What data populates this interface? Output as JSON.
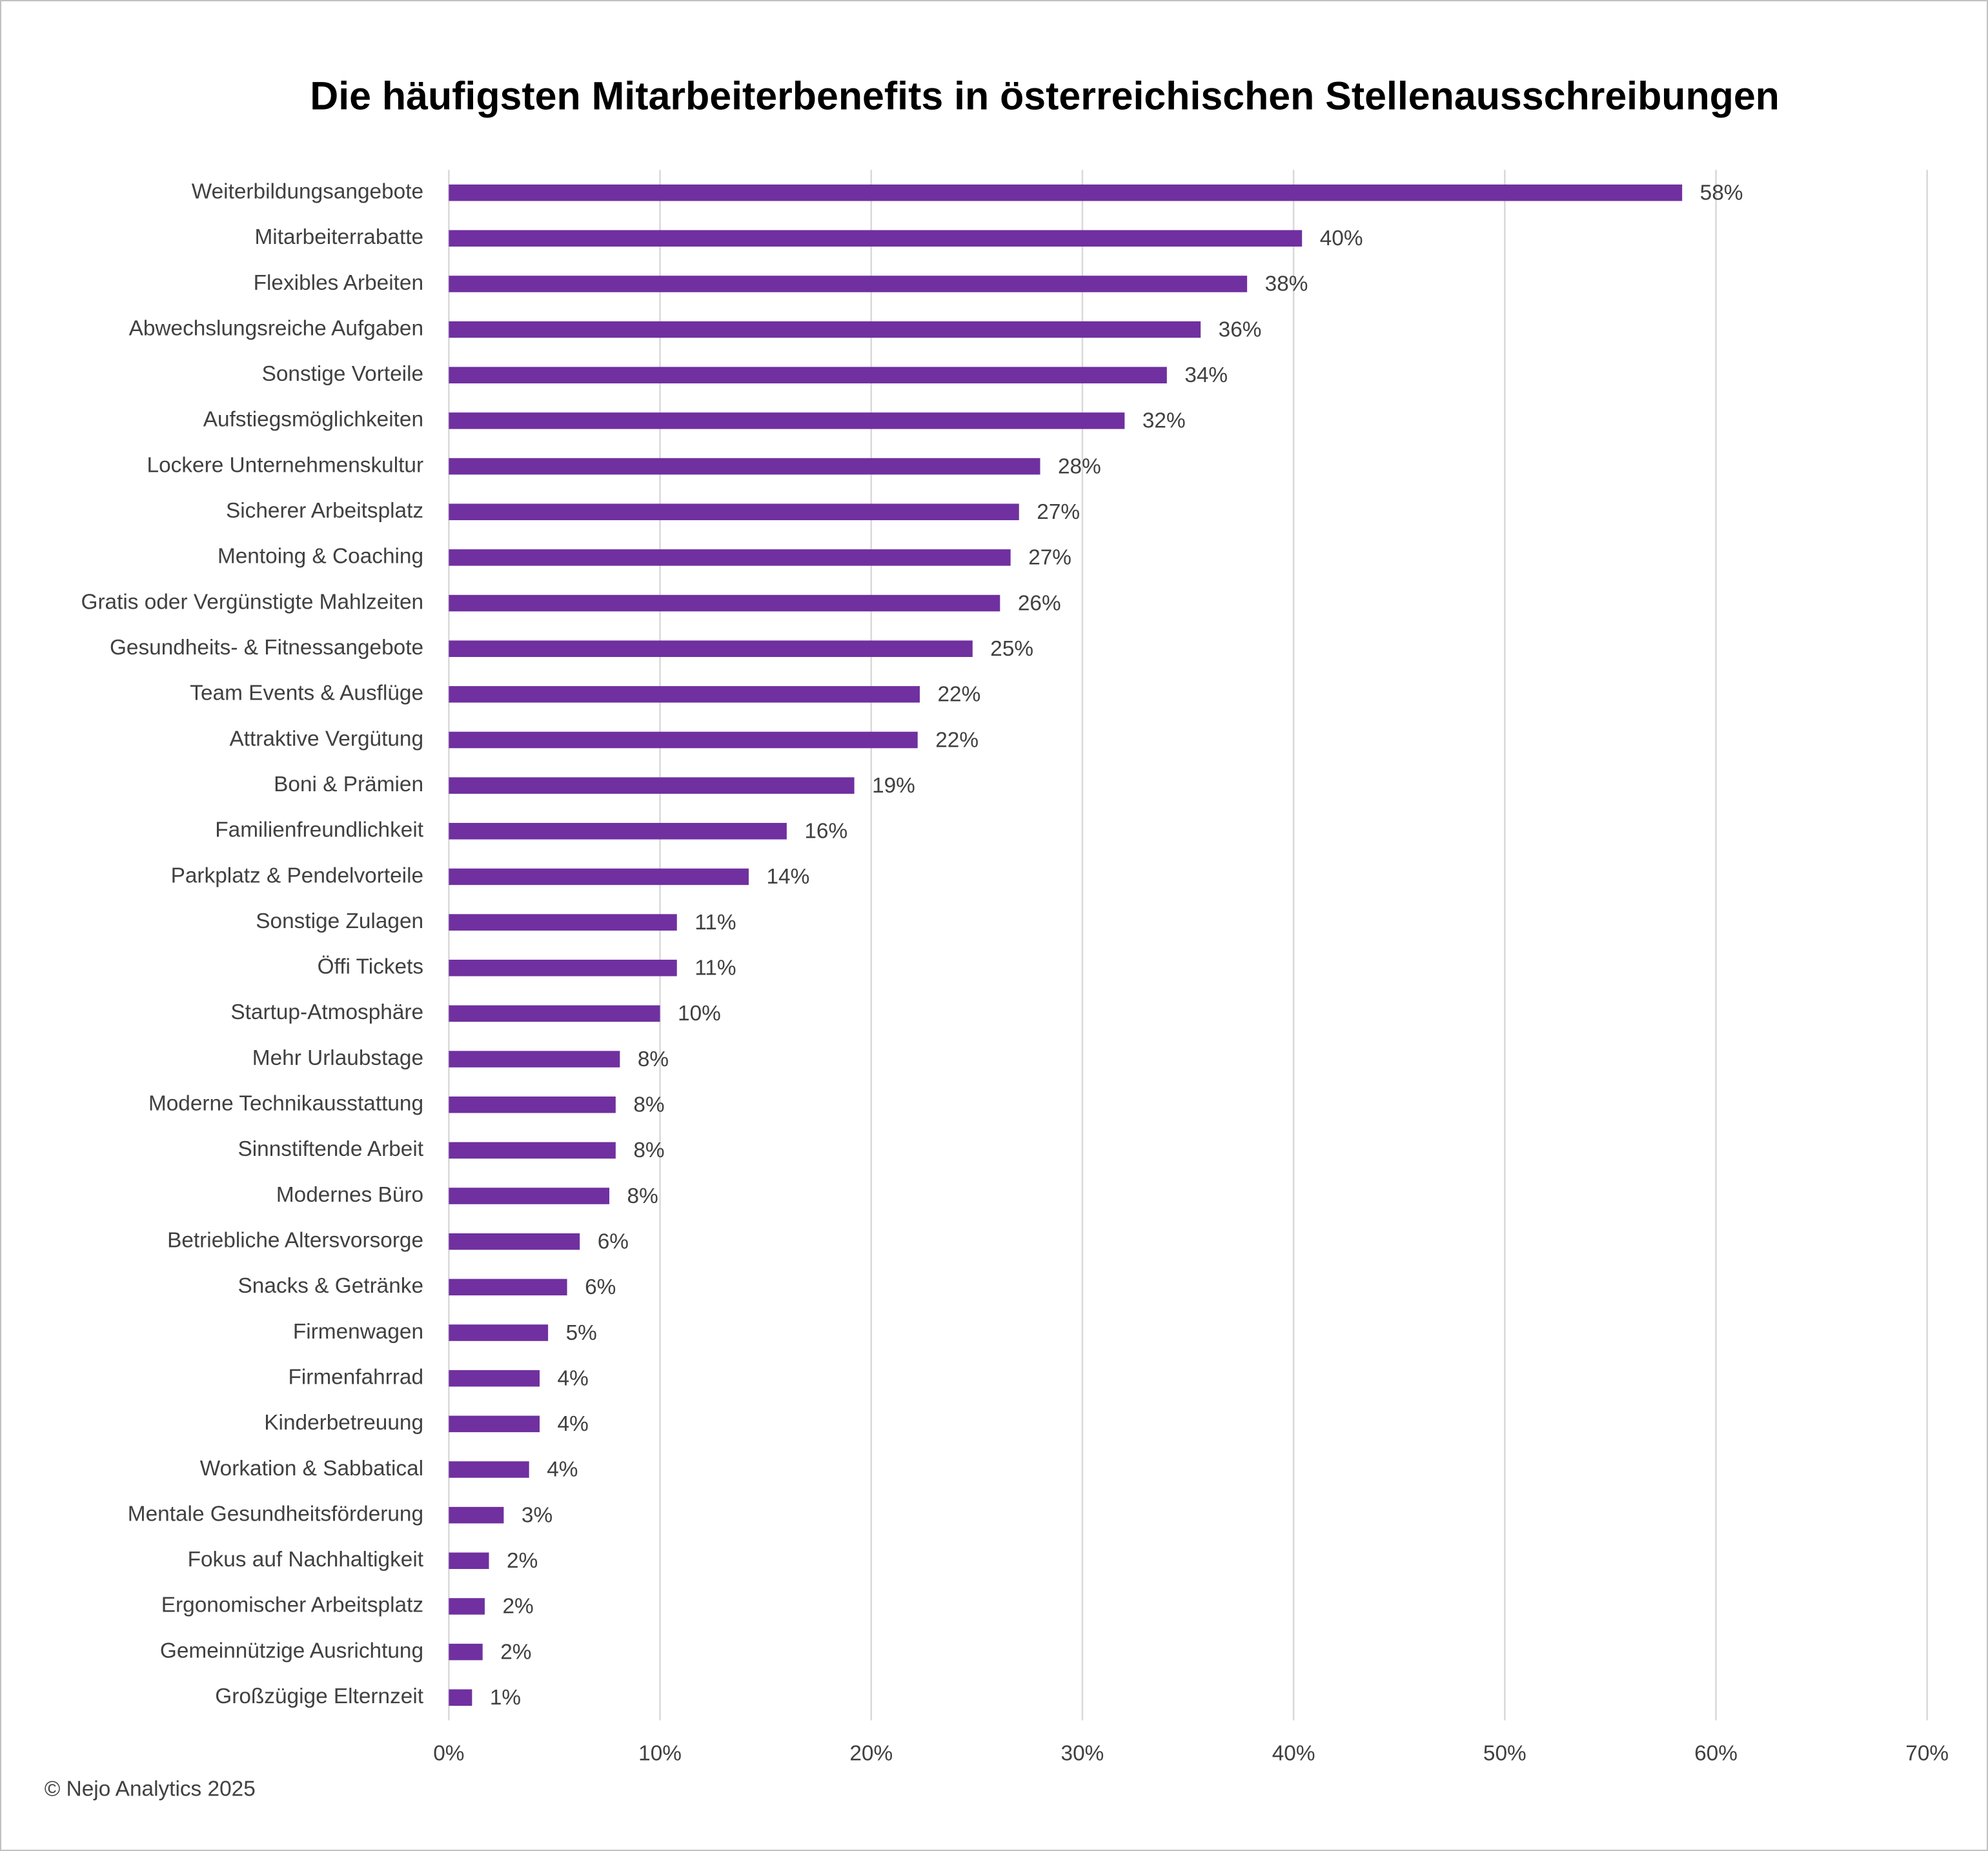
{
  "chart_data": {
    "type": "hbar",
    "title": "Die häufigsten Mitarbeiterbenefits in österreichischen Stellenausschreibungen",
    "footer": "© Nejo Analytics 2025",
    "color": "#7030a0",
    "grid": true,
    "categories": [
      "Weiterbildungsangebote",
      "Mitarbeiterrabatte",
      "Flexibles Arbeiten",
      "Abwechslungsreiche Aufgaben",
      "Sonstige Vorteile",
      "Aufstiegsmöglichkeiten",
      "Lockere Unternehmenskultur",
      "Sicherer Arbeitsplatz",
      "Mentoing & Coaching",
      "Gratis oder Vergünstigte Mahlzeiten",
      "Gesundheits- & Fitnessangebote",
      "Team Events & Ausflüge",
      "Attraktive Vergütung",
      "Boni & Prämien",
      "Familienfreundlichkeit",
      "Parkplatz & Pendelvorteile",
      "Sonstige Zulagen",
      "Öffi Tickets",
      "Startup-Atmosphäre",
      "Mehr Urlaubstage",
      "Moderne Technikausstattung",
      "Sinnstiftende Arbeit",
      "Modernes Büro",
      "Betriebliche Altersvorsorge",
      "Snacks & Getränke",
      "Firmenwagen",
      "Firmenfahrrad",
      "Kinderbetreuung",
      "Workation & Sabbatical",
      "Mentale Gesundheitsförderung",
      "Fokus auf Nachhaltigkeit",
      "Ergonomischer Arbeitsplatz",
      "Gemeinnützige Ausrichtung",
      "Großzügige Elternzeit"
    ],
    "values": [
      58.4,
      40.4,
      37.8,
      35.6,
      34.0,
      32.0,
      28.0,
      27.0,
      26.6,
      26.1,
      24.8,
      22.3,
      22.2,
      19.2,
      16.0,
      14.2,
      10.8,
      10.8,
      10.0,
      8.1,
      7.9,
      7.9,
      7.6,
      6.2,
      5.6,
      4.7,
      4.3,
      4.3,
      3.8,
      2.6,
      1.9,
      1.7,
      1.6,
      1.1
    ],
    "value_labels": [
      "58%",
      "40%",
      "38%",
      "36%",
      "34%",
      "32%",
      "28%",
      "27%",
      "27%",
      "26%",
      "25%",
      "22%",
      "22%",
      "19%",
      "16%",
      "14%",
      "11%",
      "11%",
      "10%",
      "8%",
      "8%",
      "8%",
      "8%",
      "6%",
      "6%",
      "5%",
      "4%",
      "4%",
      "4%",
      "3%",
      "2%",
      "2%",
      "2%",
      "1%"
    ],
    "xlim": [
      0,
      70
    ],
    "xticks": [
      {
        "value": 0,
        "label": "0%"
      },
      {
        "value": 10,
        "label": "10%"
      },
      {
        "value": 20,
        "label": "20%"
      },
      {
        "value": 30,
        "label": "30%"
      },
      {
        "value": 40,
        "label": "40%"
      },
      {
        "value": 50,
        "label": "50%"
      },
      {
        "value": 60,
        "label": "60%"
      },
      {
        "value": 70,
        "label": "70%"
      }
    ]
  }
}
